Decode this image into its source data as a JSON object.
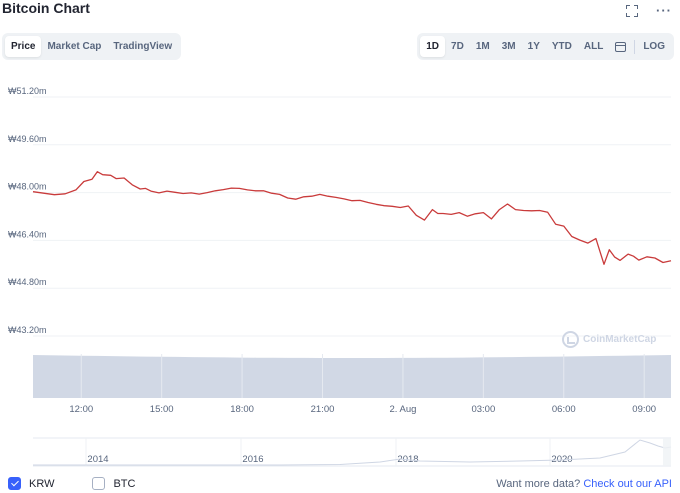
{
  "header": {
    "title": "Bitcoin Chart",
    "more_label": "···"
  },
  "tabs": [
    {
      "label": "Price",
      "active": true
    },
    {
      "label": "Market Cap",
      "active": false
    },
    {
      "label": "TradingView",
      "active": false
    }
  ],
  "ranges": [
    {
      "label": "1D",
      "active": true
    },
    {
      "label": "7D",
      "active": false
    },
    {
      "label": "1M",
      "active": false
    },
    {
      "label": "3M",
      "active": false
    },
    {
      "label": "1Y",
      "active": false
    },
    {
      "label": "YTD",
      "active": false
    },
    {
      "label": "ALL",
      "active": false
    }
  ],
  "scale_toggle": "LOG",
  "watermark": "CoinMarketCap",
  "colors": {
    "price_line": "#c93b3b",
    "volume_fill": "#cfd6e4",
    "accent": "#3861fb",
    "grid": "#eff2f5"
  },
  "chart_data": {
    "type": "line",
    "title": "",
    "y_unit": "₩",
    "ylim": [
      43.2,
      51.2
    ],
    "yticks": [
      "₩51.20m",
      "₩49.60m",
      "₩48.00m",
      "₩46.40m",
      "₩44.80m",
      "₩43.20m"
    ],
    "yticks_values": [
      51.2,
      49.6,
      48.0,
      46.4,
      44.8,
      43.2
    ],
    "xticks": [
      "12:00",
      "15:00",
      "18:00",
      "21:00",
      "2. Aug",
      "03:00",
      "06:00",
      "09:00"
    ],
    "xticks_hours": [
      12,
      15,
      18,
      21,
      24,
      27,
      30,
      33
    ],
    "xlim_hours": [
      10.2,
      34
    ],
    "grid": true,
    "series": [
      {
        "x_hours": [
          10.2,
          10.6,
          11.0,
          11.4,
          11.8,
          12.1,
          12.4,
          12.6,
          12.8,
          13.1,
          13.3,
          13.6,
          13.9,
          14.2,
          14.4,
          14.6,
          14.9,
          15.2,
          15.5,
          15.8,
          16.1,
          16.4,
          16.7,
          17.0,
          17.3,
          17.6,
          17.9,
          18.2,
          18.5,
          18.8,
          19.1,
          19.4,
          19.7,
          20.0,
          20.3,
          20.6,
          20.9,
          21.2,
          21.5,
          21.8,
          22.1,
          22.4,
          22.7,
          23.0,
          23.3,
          23.6,
          23.9,
          24.2,
          24.5,
          24.8,
          25.1,
          25.3,
          25.5,
          25.8,
          26.1,
          26.4,
          26.7,
          27.0,
          27.3,
          27.6,
          27.9,
          28.2,
          28.5,
          28.8,
          29.1,
          29.4,
          29.7,
          30.0,
          30.3,
          30.6,
          30.9,
          31.2,
          31.5,
          31.7,
          31.9,
          32.1,
          32.4,
          32.6,
          32.8,
          33.1,
          33.4,
          33.7,
          34.0
        ],
        "values": [
          48.03,
          47.98,
          47.93,
          47.96,
          48.09,
          48.37,
          48.45,
          48.7,
          48.6,
          48.58,
          48.47,
          48.49,
          48.26,
          48.12,
          48.14,
          48.05,
          47.99,
          48.05,
          48.01,
          47.97,
          47.99,
          47.95,
          48.0,
          48.06,
          48.1,
          48.15,
          48.14,
          48.09,
          48.06,
          48.06,
          47.98,
          47.94,
          47.82,
          47.78,
          47.86,
          47.88,
          47.94,
          47.88,
          47.84,
          47.79,
          47.73,
          47.74,
          47.67,
          47.61,
          47.56,
          47.54,
          47.5,
          47.55,
          47.24,
          47.08,
          47.43,
          47.3,
          47.3,
          47.27,
          47.33,
          47.21,
          47.29,
          47.33,
          47.12,
          47.43,
          47.62,
          47.43,
          47.4,
          47.39,
          47.4,
          47.34,
          46.94,
          46.88,
          46.53,
          46.41,
          46.31,
          46.46,
          45.6,
          46.09,
          45.84,
          45.73,
          45.94,
          45.87,
          45.74,
          45.85,
          45.81,
          45.66,
          45.72
        ]
      }
    ],
    "navigator": {
      "xticks": [
        "2014",
        "2016",
        "2018",
        "2020"
      ]
    }
  },
  "legend": [
    {
      "label": "KRW",
      "checked": true
    },
    {
      "label": "BTC",
      "checked": false
    }
  ],
  "footer": {
    "api_prompt": "Want more data?",
    "api_link": "Check out our API"
  }
}
